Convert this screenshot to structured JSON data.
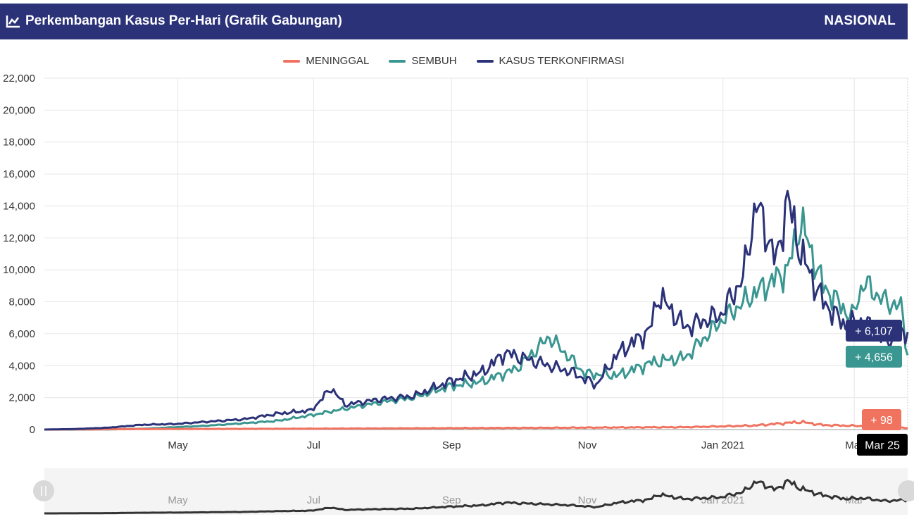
{
  "header": {
    "title": "Perkembangan Kasus Per-Hari (Grafik Gabungan)",
    "scope": "NASIONAL",
    "icon": "line-chart-icon"
  },
  "legend": [
    {
      "label": "MENINGGAL",
      "color": "#f07360"
    },
    {
      "label": "SEMBUH",
      "color": "#3a9690"
    },
    {
      "label": "KASUS TERKONFIRMASI",
      "color": "#2b3278"
    }
  ],
  "tooltip": {
    "date": "Mar 25",
    "confirmed": "+ 6,107",
    "recovered": "+ 4,656",
    "deaths": "+ 98"
  },
  "chart_data": {
    "type": "line",
    "x_range": [
      "2020-03-02",
      "2021-03-25"
    ],
    "ylim": [
      0,
      22000
    ],
    "yticks": [
      "0",
      "2,000",
      "4,000",
      "6,000",
      "8,000",
      "10,000",
      "12,000",
      "14,000",
      "16,000",
      "18,000",
      "20,000",
      "22,000"
    ],
    "xticks": [
      {
        "label": "May",
        "date": "2020-05-01"
      },
      {
        "label": "Jul",
        "date": "2020-07-01"
      },
      {
        "label": "Sep",
        "date": "2020-09-01"
      },
      {
        "label": "Nov",
        "date": "2020-11-01"
      },
      {
        "label": "Jan 2021",
        "date": "2021-01-01"
      },
      {
        "label": "Mar",
        "date": "2021-03-01"
      }
    ],
    "grid": true,
    "legend_position": "top-center",
    "series": [
      {
        "name": "KASUS TERKONFIRMASI",
        "color": "#2b3278",
        "points": [
          [
            "2020-03-02",
            2
          ],
          [
            "2020-03-15",
            30
          ],
          [
            "2020-03-31",
            120
          ],
          [
            "2020-04-15",
            300
          ],
          [
            "2020-04-30",
            350
          ],
          [
            "2020-05-15",
            500
          ],
          [
            "2020-05-31",
            650
          ],
          [
            "2020-06-15",
            1000
          ],
          [
            "2020-06-30",
            1200
          ],
          [
            "2020-07-09",
            2600
          ],
          [
            "2020-07-15",
            1550
          ],
          [
            "2020-07-31",
            1900
          ],
          [
            "2020-08-15",
            2100
          ],
          [
            "2020-08-31",
            3000
          ],
          [
            "2020-09-15",
            3600
          ],
          [
            "2020-09-25",
            4800
          ],
          [
            "2020-10-10",
            4200
          ],
          [
            "2020-10-25",
            3600
          ],
          [
            "2020-11-05",
            2800
          ],
          [
            "2020-11-15",
            4800
          ],
          [
            "2020-11-29",
            6200
          ],
          [
            "2020-12-03",
            8400
          ],
          [
            "2020-12-15",
            6400
          ],
          [
            "2020-12-31",
            7200
          ],
          [
            "2021-01-10",
            9500
          ],
          [
            "2021-01-16",
            14200
          ],
          [
            "2021-01-25",
            10500
          ],
          [
            "2021-01-30",
            14500
          ],
          [
            "2021-02-05",
            11000
          ],
          [
            "2021-02-15",
            8000
          ],
          [
            "2021-02-25",
            6500
          ],
          [
            "2021-03-05",
            6800
          ],
          [
            "2021-03-15",
            5500
          ],
          [
            "2021-03-25",
            6107
          ]
        ]
      },
      {
        "name": "SEMBUH",
        "color": "#3a9690",
        "points": [
          [
            "2020-03-02",
            0
          ],
          [
            "2020-03-15",
            2
          ],
          [
            "2020-03-31",
            10
          ],
          [
            "2020-04-15",
            50
          ],
          [
            "2020-04-30",
            150
          ],
          [
            "2020-05-15",
            250
          ],
          [
            "2020-05-31",
            400
          ],
          [
            "2020-06-15",
            550
          ],
          [
            "2020-06-30",
            900
          ],
          [
            "2020-07-15",
            1300
          ],
          [
            "2020-07-31",
            1700
          ],
          [
            "2020-08-15",
            2000
          ],
          [
            "2020-08-31",
            2700
          ],
          [
            "2020-09-15",
            3000
          ],
          [
            "2020-09-30",
            3800
          ],
          [
            "2020-10-15",
            5800
          ],
          [
            "2020-10-31",
            3500
          ],
          [
            "2020-11-15",
            3400
          ],
          [
            "2020-11-30",
            4200
          ],
          [
            "2020-12-15",
            4500
          ],
          [
            "2020-12-31",
            6800
          ],
          [
            "2021-01-15",
            8500
          ],
          [
            "2021-01-30",
            10000
          ],
          [
            "2021-02-05",
            13000
          ],
          [
            "2021-02-15",
            9000
          ],
          [
            "2021-02-28",
            7000
          ],
          [
            "2021-03-05",
            9200
          ],
          [
            "2021-03-15",
            8000
          ],
          [
            "2021-03-22",
            7700
          ],
          [
            "2021-03-25",
            4656
          ]
        ]
      },
      {
        "name": "MENINGGAL",
        "color": "#f07360",
        "points": [
          [
            "2020-03-02",
            0
          ],
          [
            "2020-04-15",
            30
          ],
          [
            "2020-06-15",
            50
          ],
          [
            "2020-08-15",
            80
          ],
          [
            "2020-10-15",
            110
          ],
          [
            "2020-12-15",
            150
          ],
          [
            "2021-01-15",
            250
          ],
          [
            "2021-02-05",
            480
          ],
          [
            "2021-02-15",
            280
          ],
          [
            "2021-03-05",
            220
          ],
          [
            "2021-03-25",
            98
          ]
        ]
      }
    ],
    "navigator": {
      "xticks": [
        "May",
        "Jul",
        "Sep",
        "Nov",
        "Jan 2021",
        "Mar"
      ]
    }
  }
}
